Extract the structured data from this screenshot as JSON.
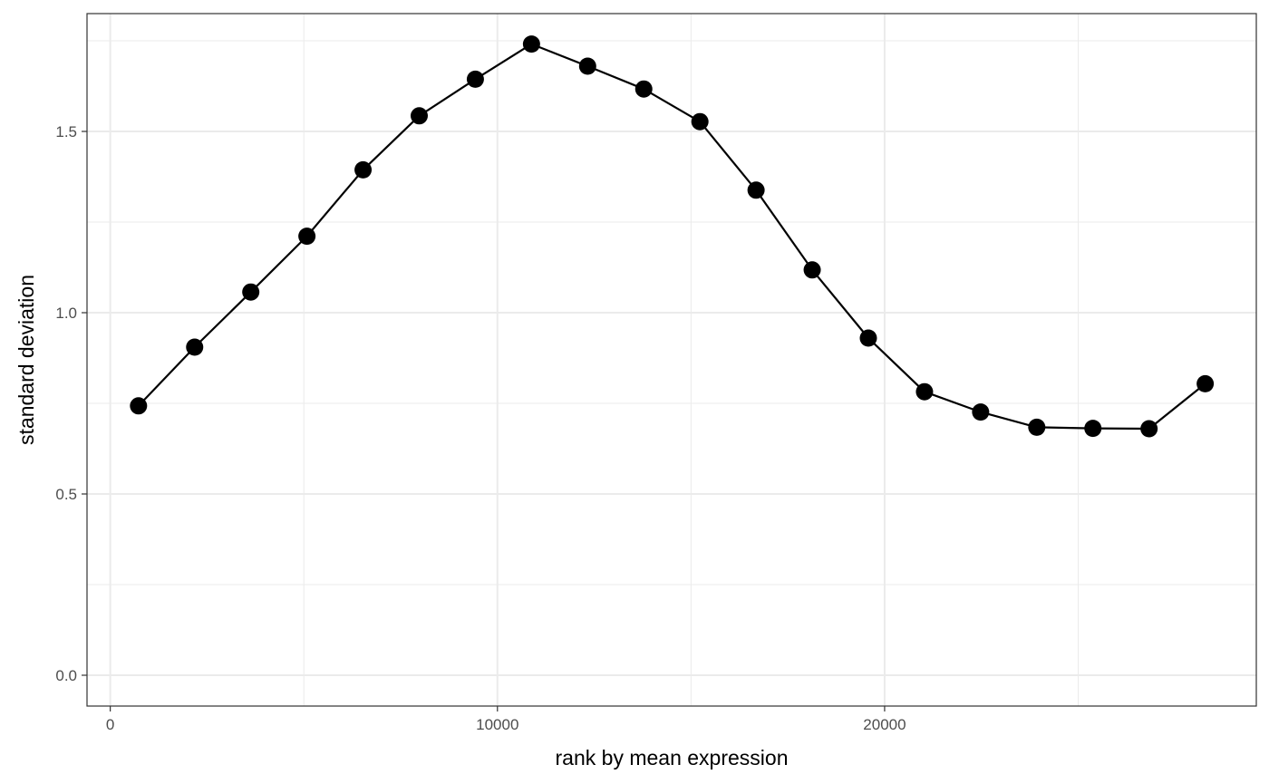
{
  "chart_data": {
    "type": "line",
    "title": "",
    "xlabel": "rank by mean expression",
    "ylabel": "standard deviation",
    "xlim": [
      -600,
      29600
    ],
    "ylim": [
      -0.085,
      1.825
    ],
    "x_ticks": [
      {
        "value": 0,
        "label": "0"
      },
      {
        "value": 10000,
        "label": "10000"
      },
      {
        "value": 20000,
        "label": "20000"
      }
    ],
    "x_minor_ticks": [
      5000,
      15000,
      25000
    ],
    "y_ticks": [
      {
        "value": 0.0,
        "label": "0.0"
      },
      {
        "value": 0.5,
        "label": "0.5"
      },
      {
        "value": 1.0,
        "label": "1.0"
      },
      {
        "value": 1.5,
        "label": "1.5"
      }
    ],
    "y_minor_ticks": [
      0.25,
      0.75,
      1.25,
      1.75
    ],
    "grid": true,
    "series": [
      {
        "markers": true,
        "color": "#000000",
        "points": [
          {
            "x": 730,
            "y": 0.743
          },
          {
            "x": 2180,
            "y": 0.905
          },
          {
            "x": 3630,
            "y": 1.057
          },
          {
            "x": 5080,
            "y": 1.211
          },
          {
            "x": 6530,
            "y": 1.394
          },
          {
            "x": 7980,
            "y": 1.543
          },
          {
            "x": 9430,
            "y": 1.644
          },
          {
            "x": 10880,
            "y": 1.741
          },
          {
            "x": 12330,
            "y": 1.68
          },
          {
            "x": 13780,
            "y": 1.617
          },
          {
            "x": 15230,
            "y": 1.527
          },
          {
            "x": 16680,
            "y": 1.338
          },
          {
            "x": 18130,
            "y": 1.118
          },
          {
            "x": 19580,
            "y": 0.93
          },
          {
            "x": 21030,
            "y": 0.782
          },
          {
            "x": 22480,
            "y": 0.726
          },
          {
            "x": 23930,
            "y": 0.684
          },
          {
            "x": 25380,
            "y": 0.681
          },
          {
            "x": 26830,
            "y": 0.68
          },
          {
            "x": 28280,
            "y": 0.804
          }
        ]
      }
    ]
  }
}
